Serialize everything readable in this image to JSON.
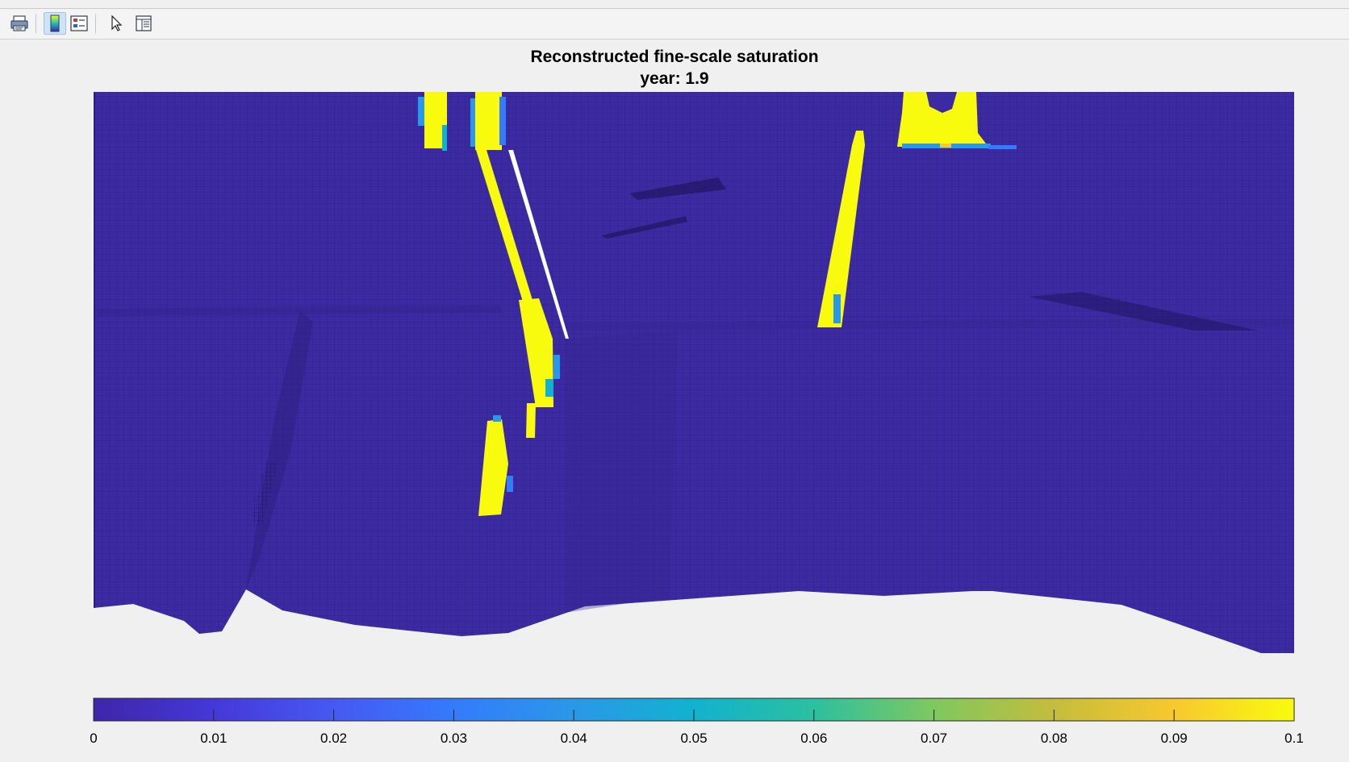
{
  "menubar": {
    "text": ""
  },
  "toolbar": {
    "buttons": [
      {
        "icon": "print-icon"
      },
      {
        "icon": "colorbar-icon",
        "active": true
      },
      {
        "icon": "legend-icon"
      },
      {
        "icon": "pointer-icon"
      },
      {
        "icon": "property-inspector-icon"
      }
    ]
  },
  "figure": {
    "title": "Reconstructed fine-scale saturation",
    "subtitle": "year: 1.9"
  },
  "colors": {
    "background": "#f0f0f0",
    "low": "#3e26a8",
    "high": "#f9fb0e",
    "outline_white": "#ffffff"
  },
  "colorbar": {
    "min": 0,
    "max": 0.1,
    "tick_labels": [
      "0",
      "0.01",
      "0.02",
      "0.03",
      "0.04",
      "0.05",
      "0.06",
      "0.07",
      "0.08",
      "0.09",
      "0.1"
    ],
    "colormap": "parula"
  }
}
